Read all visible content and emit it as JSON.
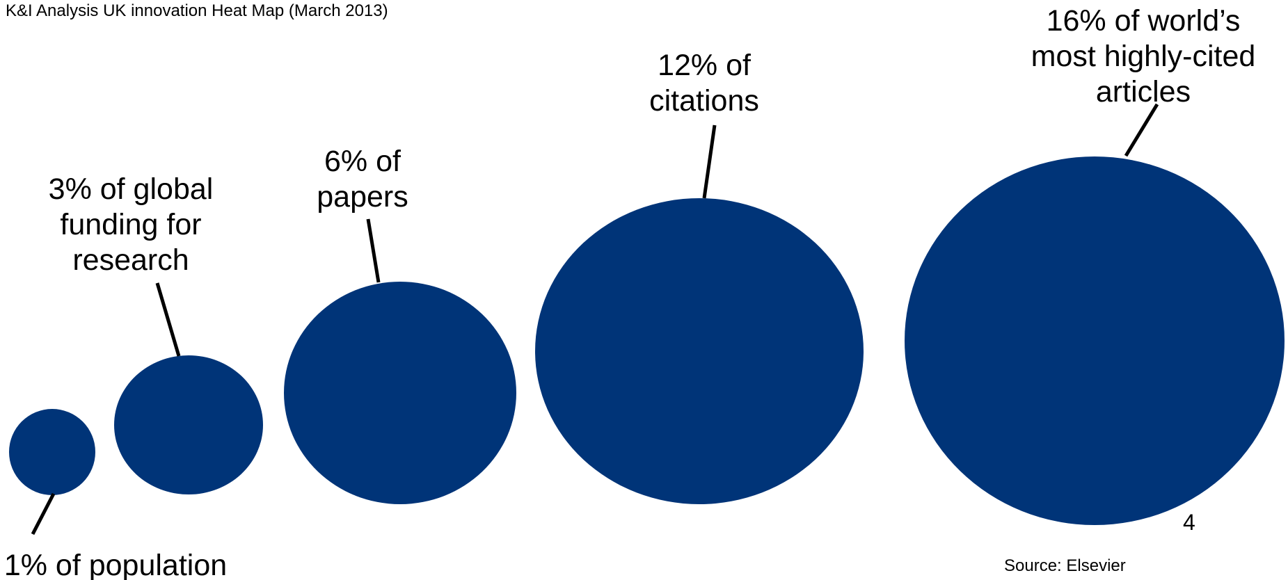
{
  "title": "K&I Analysis UK innovation Heat Map (March 2013)",
  "source": "Source: Elsevier",
  "page_number": "4",
  "colors": {
    "bubble": "#003478",
    "leader_line": "#000000"
  },
  "chart_data": {
    "type": "bubble",
    "title": "",
    "unit": "% share",
    "legend": "none",
    "grid": false,
    "bubbles": [
      {
        "label_lines": [
          "1% of population"
        ],
        "value": 1
      },
      {
        "label_lines": [
          "3% of global",
          "funding for",
          "research"
        ],
        "value": 3
      },
      {
        "label_lines": [
          "6% of",
          "papers"
        ],
        "value": 6
      },
      {
        "label_lines": [
          "12% of",
          "citations"
        ],
        "value": 12
      },
      {
        "label_lines": [
          "16% of world’s",
          "most highly-cited",
          "articles"
        ],
        "value": 16
      }
    ]
  }
}
